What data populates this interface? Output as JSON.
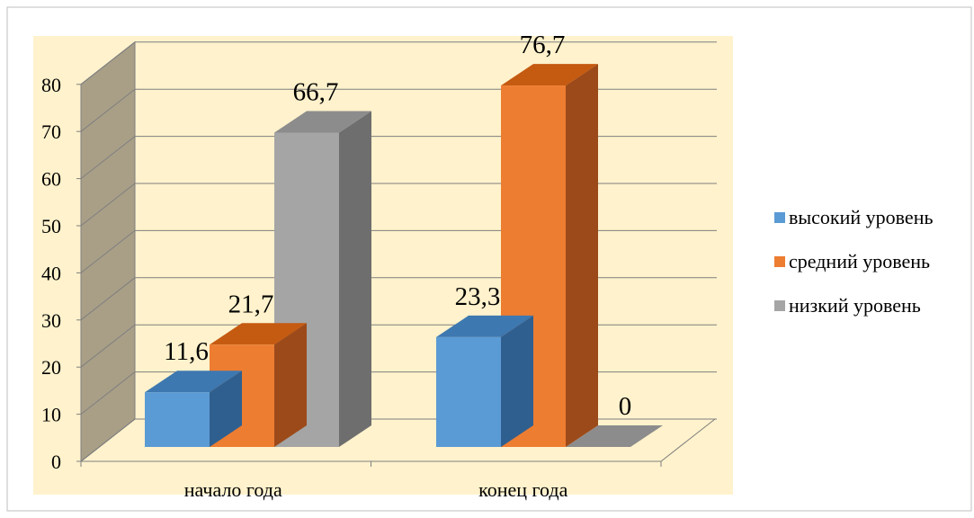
{
  "chart_data": {
    "type": "bar",
    "categories": [
      "начало года",
      "конец года"
    ],
    "series": [
      {
        "name": "высокий уровень",
        "values": [
          11.6,
          23.3
        ],
        "labels": [
          "11,6",
          "23,3"
        ]
      },
      {
        "name": "средний уровень",
        "values": [
          21.7,
          76.7
        ],
        "labels": [
          "21,7",
          "76,7"
        ]
      },
      {
        "name": "низкий уровень",
        "values": [
          66.7,
          0
        ],
        "labels": [
          "66,7",
          "0"
        ]
      }
    ],
    "ylim": [
      0,
      80
    ],
    "yticks": [
      0,
      10,
      20,
      30,
      40,
      50,
      60,
      70,
      80
    ],
    "grid": true,
    "legend": "right",
    "three_d": true
  },
  "colors": {
    "plot_background": "#fff2cc",
    "back_wall": "#a99f87",
    "series": [
      "#5b9bd5",
      "#ed7d31",
      "#a5a5a5"
    ],
    "series_top": [
      "#3e78b0",
      "#c55a11",
      "#8c8c8c"
    ],
    "series_side": [
      "#2f5f8f",
      "#9c4a1a",
      "#6e6e6e"
    ]
  }
}
